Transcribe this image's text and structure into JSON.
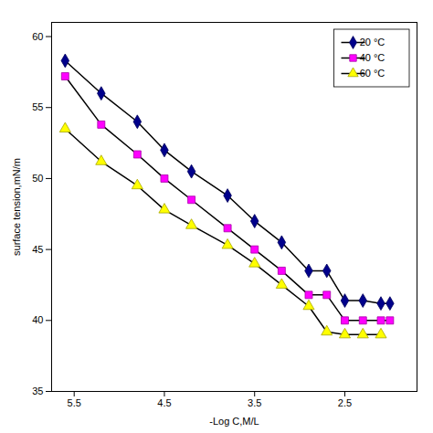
{
  "chart_data": {
    "type": "line",
    "xlabel": "-Log C,M/L",
    "ylabel": "surface tension,mN/m",
    "xlim": [
      5.75,
      1.7
    ],
    "ylim": [
      35,
      61
    ],
    "xticks": [
      5.5,
      4.5,
      3.5,
      2.5
    ],
    "yticks": [
      35,
      40,
      45,
      50,
      55,
      60
    ],
    "color": "#000000",
    "grid": false,
    "legend": "upper right",
    "series": [
      {
        "name": "20 °C",
        "color": "#00008B",
        "marker": "diamond",
        "x": [
          5.6,
          5.2,
          4.8,
          4.5,
          4.2,
          3.8,
          3.5,
          3.2,
          2.9,
          2.7,
          2.5,
          2.3,
          2.1,
          2.0
        ],
        "values": [
          58.3,
          56.0,
          54.0,
          52.0,
          50.5,
          48.8,
          47.0,
          45.5,
          43.5,
          43.5,
          41.4,
          41.4,
          41.2,
          41.2
        ]
      },
      {
        "name": "40 °C",
        "color": "#FF00FF",
        "marker": "square",
        "x": [
          5.6,
          5.2,
          4.8,
          4.5,
          4.2,
          3.8,
          3.5,
          3.2,
          2.9,
          2.7,
          2.5,
          2.3,
          2.1,
          2.0
        ],
        "values": [
          57.2,
          53.8,
          51.7,
          50.0,
          48.5,
          46.5,
          45.0,
          43.5,
          41.8,
          41.8,
          40.0,
          40.0,
          40.0,
          40.0
        ]
      },
      {
        "name": "60 °C",
        "color": "#FFFF00",
        "marker": "triangle",
        "x": [
          5.6,
          5.2,
          4.8,
          4.5,
          4.2,
          3.8,
          3.5,
          3.2,
          2.9,
          2.7,
          2.5,
          2.3,
          2.1
        ],
        "values": [
          53.5,
          51.2,
          49.5,
          47.8,
          46.7,
          45.3,
          44.0,
          42.5,
          41.0,
          39.2,
          39.0,
          39.0,
          39.0
        ]
      }
    ]
  }
}
